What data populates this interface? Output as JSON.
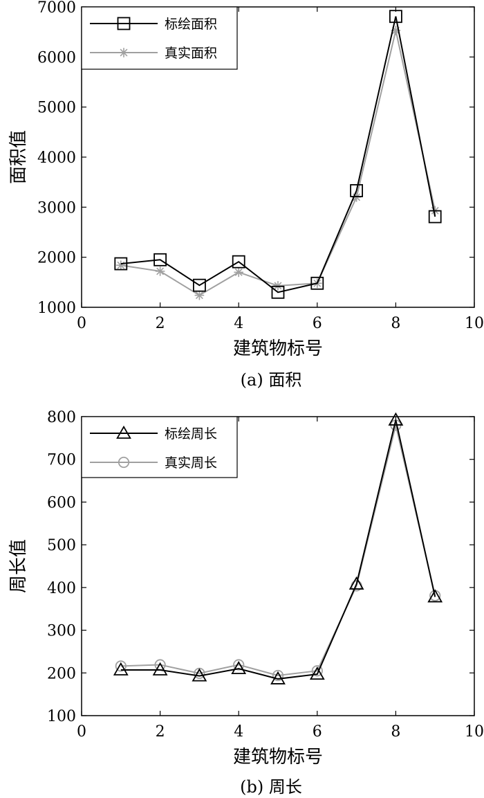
{
  "chart_data": [
    {
      "type": "line",
      "caption": "(a) 面积",
      "xlabel": "建筑物标号",
      "ylabel": "面积值",
      "xlim": [
        0,
        10
      ],
      "ylim": [
        1000,
        7000
      ],
      "xticks": [
        0,
        2,
        4,
        6,
        8,
        10
      ],
      "yticks": [
        1000,
        2000,
        3000,
        4000,
        5000,
        6000,
        7000
      ],
      "grid": false,
      "legend_position": "top-left",
      "x": [
        1,
        2,
        3,
        4,
        5,
        6,
        7,
        8,
        9
      ],
      "series": [
        {
          "name": "标绘面积",
          "values": [
            1870,
            1950,
            1440,
            1910,
            1300,
            1480,
            3330,
            6810,
            2810
          ],
          "color": "#000000",
          "marker": "square"
        },
        {
          "name": "真实面积",
          "values": [
            1840,
            1720,
            1240,
            1700,
            1430,
            1480,
            3200,
            6530,
            2930
          ],
          "color": "#a0a0a0",
          "marker": "asterisk"
        }
      ]
    },
    {
      "type": "line",
      "caption": "(b) 周长",
      "xlabel": "建筑物标号",
      "ylabel": "周长值",
      "xlim": [
        0,
        10
      ],
      "ylim": [
        100,
        800
      ],
      "xticks": [
        0,
        2,
        4,
        6,
        8,
        10
      ],
      "yticks": [
        100,
        200,
        300,
        400,
        500,
        600,
        700,
        800
      ],
      "grid": false,
      "legend_position": "top-left",
      "x": [
        1,
        2,
        3,
        4,
        5,
        6,
        7,
        8,
        9
      ],
      "series": [
        {
          "name": "标绘周长",
          "values": [
            207,
            207,
            193,
            210,
            186,
            197,
            408,
            792,
            378
          ],
          "color": "#000000",
          "marker": "triangle"
        },
        {
          "name": "真实周长",
          "values": [
            216,
            219,
            199,
            219,
            194,
            205,
            404,
            780,
            381
          ],
          "color": "#a0a0a0",
          "marker": "circle"
        }
      ]
    }
  ]
}
